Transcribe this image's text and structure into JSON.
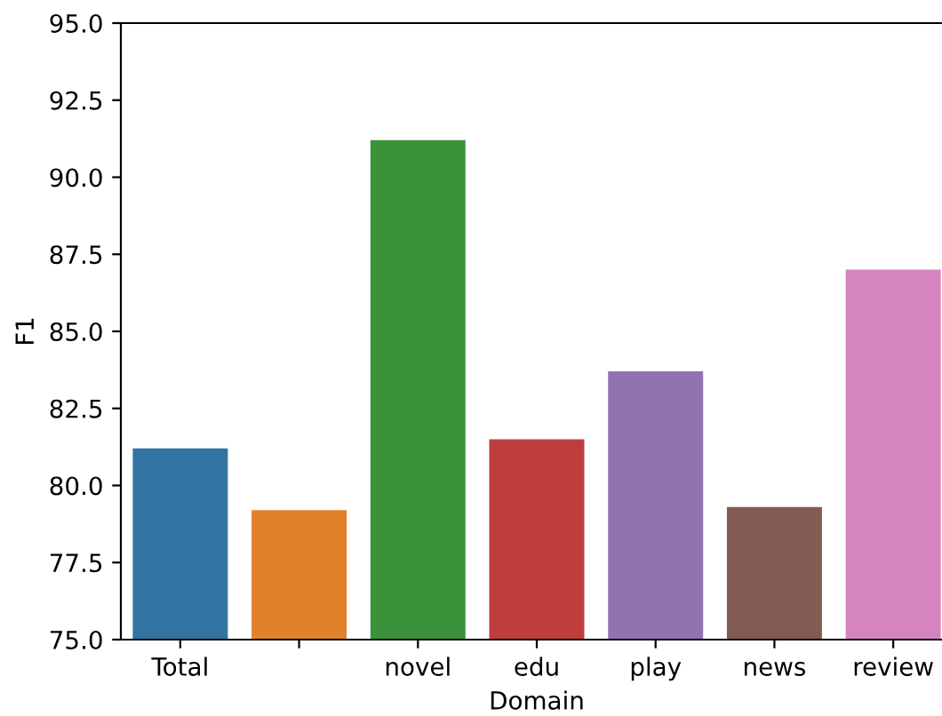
{
  "chart_data": {
    "type": "bar",
    "xlabel": "Domain",
    "ylabel": "F1",
    "categories": [
      "Total",
      null,
      "novel",
      "edu",
      "play",
      "news",
      "review"
    ],
    "values": [
      81.2,
      79.2,
      91.2,
      81.5,
      83.7,
      79.3,
      87.0
    ],
    "colors": [
      "#3274a1",
      "#e1812c",
      "#3a923a",
      "#c03d3e",
      "#9372b2",
      "#845b53",
      "#d684bd"
    ],
    "ylim": [
      75,
      95
    ],
    "yticks": [
      {
        "value": 75,
        "label": "75.0"
      },
      {
        "value": 77.5,
        "label": "77.5"
      },
      {
        "value": 80,
        "label": "80.0"
      },
      {
        "value": 82.5,
        "label": "82.5"
      },
      {
        "value": 85,
        "label": "85.0"
      },
      {
        "value": 87.5,
        "label": "87.5"
      },
      {
        "value": 90,
        "label": "90.0"
      },
      {
        "value": 92.5,
        "label": "92.5"
      },
      {
        "value": 95,
        "label": "95.0"
      }
    ],
    "grid": false
  }
}
